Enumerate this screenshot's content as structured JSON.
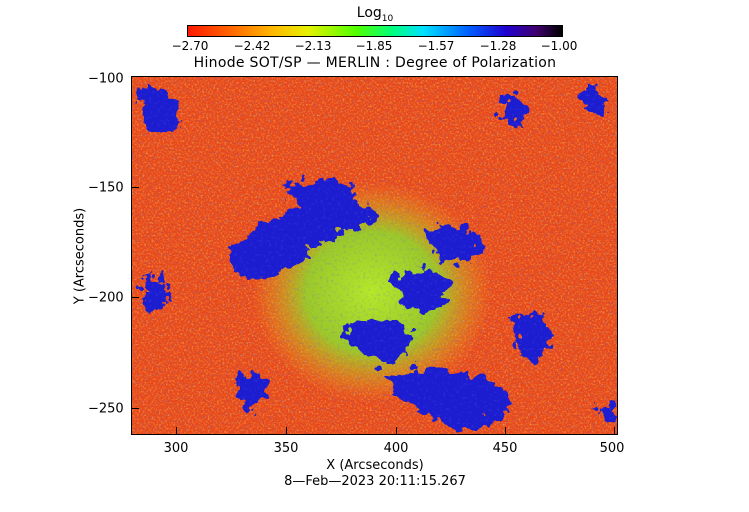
{
  "colorbar": {
    "title_main": "Log",
    "title_sub": "10",
    "ticks": [
      "−2.70",
      "−2.42",
      "−2.13",
      "−1.85",
      "−1.57",
      "−1.28",
      "−1.00"
    ]
  },
  "plot": {
    "title": "Hinode SOT/SP — MERLIN : Degree of Polarization",
    "xlabel": "X (Arcseconds)",
    "ylabel": "Y (Arcseconds)",
    "x_ticks": [
      "300",
      "350",
      "400",
      "450",
      "500"
    ],
    "y_ticks": [
      "−100",
      "−150",
      "−200",
      "−250"
    ],
    "colormap": "rainbow: red → orange → yellow → green → cyan → blue → black",
    "colors": {
      "background": "#e8401a",
      "mid": "#f59a1a",
      "green": "#44d92a",
      "blue": "#1a20d0"
    }
  },
  "timestamp": "8—Feb—2023 20:11:15.267"
}
